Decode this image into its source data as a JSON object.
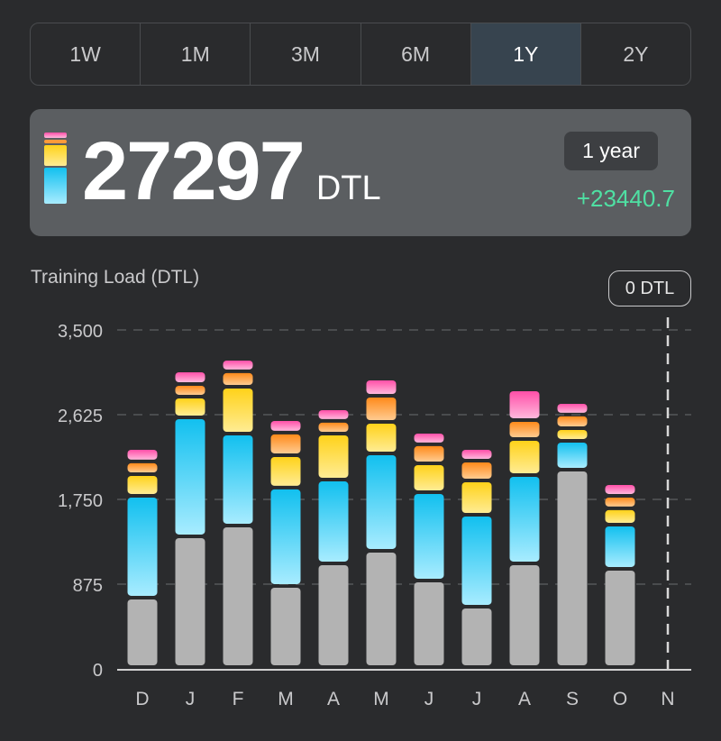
{
  "ranges": [
    "1W",
    "1M",
    "3M",
    "6M",
    "1Y",
    "2Y"
  ],
  "selected_range": "1Y",
  "summary": {
    "value": "27297",
    "unit": "DTL",
    "period": "1 year",
    "change": "+23440.7",
    "change_color": "#4fe0a3"
  },
  "chart_label": "Training Load (DTL)",
  "selection_badge": "0 DTL",
  "colors": {
    "gray": "#b3b3b3",
    "blue": [
      "#12c0ef",
      "#a8ecff"
    ],
    "yellow": [
      "#ffd21a",
      "#ffec94"
    ],
    "orange": [
      "#ff8a1a",
      "#ffcb90"
    ],
    "pink": [
      "#ff4fa8",
      "#ffb8dc"
    ]
  },
  "chart_data": {
    "type": "bar",
    "stacked": true,
    "title": "Training Load (DTL)",
    "categories": [
      "D",
      "J",
      "F",
      "M",
      "A",
      "M",
      "J",
      "J",
      "A",
      "S",
      "O",
      "N"
    ],
    "series": [
      {
        "name": "gray",
        "values": [
          717,
          1350,
          1462,
          838,
          1071,
          1201,
          894,
          624,
          1071,
          2039,
          1015,
          0
        ]
      },
      {
        "name": "blue",
        "values": [
          1052,
          1229,
          949,
          1015,
          865,
          1005,
          912,
          949,
          912,
          298,
          456,
          0
        ]
      },
      {
        "name": "yellow",
        "values": [
          223,
          214,
          484,
          335,
          475,
          326,
          298,
          354,
          372,
          130,
          168,
          0
        ]
      },
      {
        "name": "orange",
        "values": [
          131,
          130,
          159,
          233,
          131,
          270,
          196,
          205,
          196,
          140,
          130,
          0
        ]
      },
      {
        "name": "pink",
        "values": [
          139,
          140,
          130,
          139,
          130,
          177,
          130,
          130,
          316,
          130,
          130,
          0
        ]
      }
    ],
    "yticks": [
      "0",
      "875",
      "1,750",
      "2,625",
      "3,500"
    ],
    "ytick_values": [
      0,
      875,
      1750,
      2625,
      3500
    ],
    "ylim": [
      0,
      3500
    ],
    "grid": true,
    "selected_category_index": 11
  }
}
